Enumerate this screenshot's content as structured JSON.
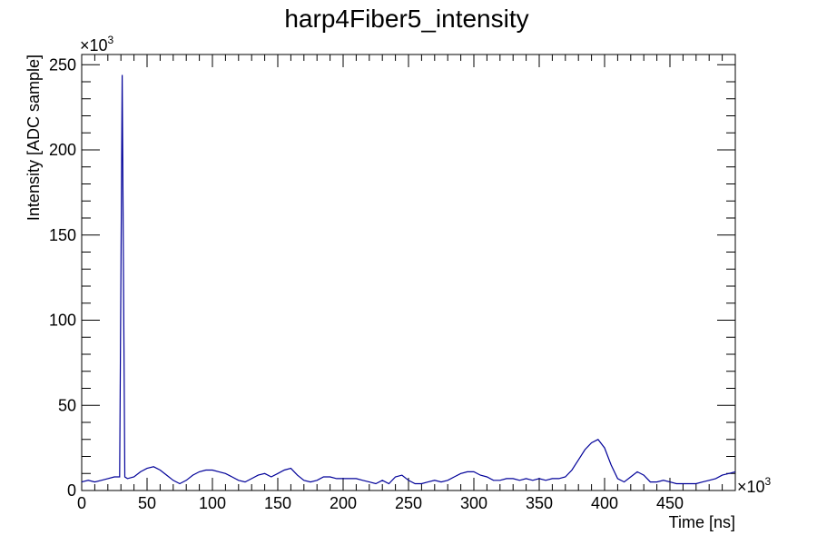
{
  "chart_data": {
    "type": "line",
    "title": "harp4Fiber5_intensity",
    "xlabel": "Time [ns]",
    "ylabel": "Intensity [ADC sample]",
    "x_multiplier": "×10",
    "x_multiplier_exp": "3",
    "y_multiplier": "×10",
    "y_multiplier_exp": "3",
    "xlim": [
      0,
      500
    ],
    "ylim": [
      0,
      256
    ],
    "x_ticks": [
      0,
      50,
      100,
      150,
      200,
      250,
      300,
      350,
      400,
      450
    ],
    "x_tick_labels": [
      "0",
      "50",
      "100",
      "150",
      "200",
      "250",
      "300",
      "350",
      "400",
      "450"
    ],
    "y_ticks": [
      0,
      50,
      100,
      150,
      200,
      250
    ],
    "y_tick_labels": [
      "0",
      "50",
      "100",
      "150",
      "200",
      "250"
    ],
    "grid": false,
    "line_color": "#000099",
    "series": [
      {
        "x": [
          0,
          5,
          10,
          15,
          20,
          25,
          29,
          31,
          33,
          35,
          40,
          45,
          50,
          55,
          60,
          65,
          70,
          75,
          80,
          85,
          90,
          95,
          100,
          105,
          110,
          115,
          120,
          125,
          130,
          135,
          140,
          145,
          150,
          155,
          160,
          165,
          170,
          175,
          180,
          185,
          190,
          195,
          200,
          205,
          210,
          215,
          220,
          225,
          230,
          235,
          240,
          245,
          250,
          255,
          260,
          265,
          270,
          275,
          280,
          285,
          290,
          295,
          300,
          305,
          310,
          315,
          320,
          325,
          330,
          335,
          340,
          345,
          350,
          355,
          360,
          365,
          370,
          375,
          380,
          385,
          390,
          395,
          400,
          405,
          410,
          415,
          420,
          425,
          430,
          435,
          440,
          445,
          450,
          455,
          460,
          465,
          470,
          475,
          480,
          485,
          490,
          495,
          500
        ],
        "y": [
          5,
          6,
          5,
          6,
          7,
          8,
          8,
          244,
          8,
          7,
          8,
          11,
          13,
          14,
          12,
          9,
          6,
          4,
          6,
          9,
          11,
          12,
          12,
          11,
          10,
          8,
          6,
          5,
          7,
          9,
          10,
          8,
          10,
          12,
          13,
          9,
          6,
          5,
          6,
          8,
          8,
          7,
          7,
          7,
          7,
          6,
          5,
          4,
          6,
          4,
          8,
          9,
          6,
          4,
          4,
          5,
          6,
          5,
          6,
          8,
          10,
          11,
          11,
          9,
          8,
          6,
          6,
          7,
          7,
          6,
          7,
          6,
          7,
          6,
          7,
          7,
          8,
          12,
          18,
          24,
          28,
          30,
          25,
          15,
          7,
          5,
          8,
          11,
          9,
          5,
          5,
          6,
          5,
          4,
          4,
          4,
          4,
          5,
          6,
          7,
          9,
          10,
          11
        ]
      }
    ]
  }
}
